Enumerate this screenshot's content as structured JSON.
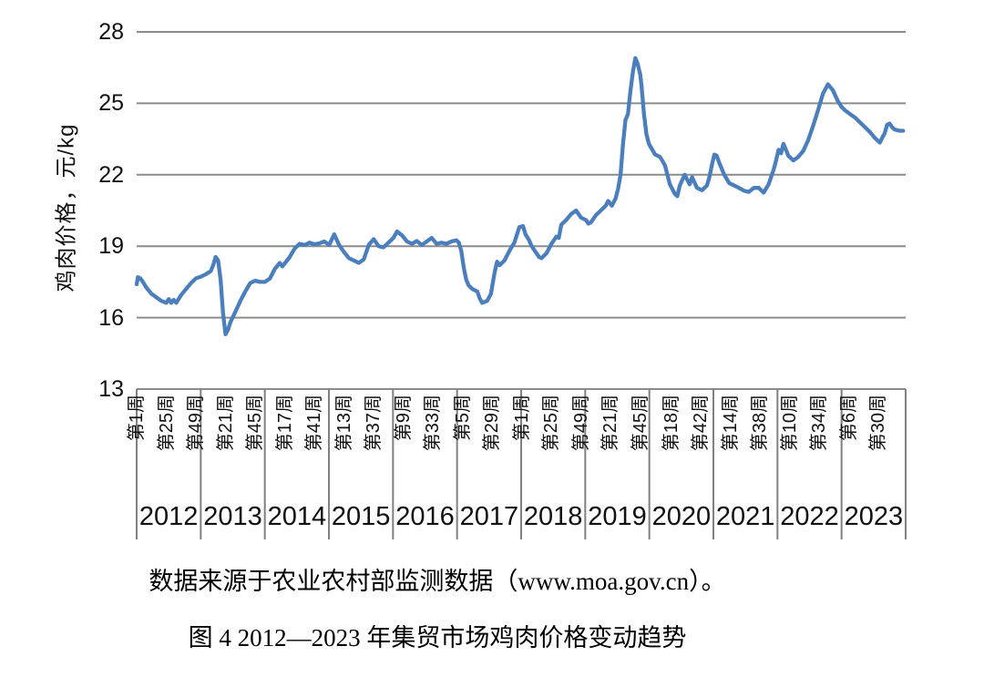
{
  "figure": {
    "source_note": "数据来源于农业农村部监测数据（www.moa.gov.cn）。",
    "caption": "图 4 2012—2023 年集贸市场鸡肉价格变动趋势"
  },
  "chart_data": {
    "type": "line",
    "title": "",
    "ylabel": "鸡肉价格，元/kg",
    "xlabel": "",
    "ylim": [
      13,
      28
    ],
    "y_ticks": [
      28,
      25,
      22,
      19,
      16,
      13
    ],
    "grid": "horizontal",
    "legend": "none",
    "x_unit": "week",
    "weeks_per_year": 52,
    "x_total_weeks": 624,
    "years": [
      "2012",
      "2013",
      "2014",
      "2015",
      "2016",
      "2017",
      "2018",
      "2019",
      "2020",
      "2021",
      "2022",
      "2023"
    ],
    "week_tick_labels": [
      {
        "label": "第1周",
        "global_week": 1
      },
      {
        "label": "第25周",
        "global_week": 25
      },
      {
        "label": "第49周",
        "global_week": 49
      },
      {
        "label": "第21周",
        "global_week": 73
      },
      {
        "label": "第45周",
        "global_week": 97
      },
      {
        "label": "第17周",
        "global_week": 121
      },
      {
        "label": "第41周",
        "global_week": 145
      },
      {
        "label": "第13周",
        "global_week": 169
      },
      {
        "label": "第37周",
        "global_week": 193
      },
      {
        "label": "第9周",
        "global_week": 217
      },
      {
        "label": "第33周",
        "global_week": 241
      },
      {
        "label": "第5周",
        "global_week": 265
      },
      {
        "label": "第29周",
        "global_week": 289
      },
      {
        "label": "第1周",
        "global_week": 313
      },
      {
        "label": "第25周",
        "global_week": 337
      },
      {
        "label": "第49周",
        "global_week": 361
      },
      {
        "label": "第21周",
        "global_week": 385
      },
      {
        "label": "第45周",
        "global_week": 409
      },
      {
        "label": "第18周",
        "global_week": 434
      },
      {
        "label": "第42周",
        "global_week": 458
      },
      {
        "label": "第14周",
        "global_week": 482
      },
      {
        "label": "第38周",
        "global_week": 506
      },
      {
        "label": "第10周",
        "global_week": 530
      },
      {
        "label": "第34周",
        "global_week": 554
      },
      {
        "label": "第6周",
        "global_week": 578
      },
      {
        "label": "第30周",
        "global_week": 602
      }
    ],
    "colors": {
      "line": "#4a7ebd",
      "gridline": "#8c8c8c",
      "table_border": "#808080",
      "text": "#111111"
    },
    "series": [
      {
        "name": "鸡肉价格",
        "unit": "元/kg",
        "points": [
          [
            1,
            17.4
          ],
          [
            2,
            17.7
          ],
          [
            4,
            17.65
          ],
          [
            6,
            17.5
          ],
          [
            9,
            17.25
          ],
          [
            13,
            17.0
          ],
          [
            17,
            16.85
          ],
          [
            21,
            16.7
          ],
          [
            25,
            16.62
          ],
          [
            27,
            16.78
          ],
          [
            29,
            16.62
          ],
          [
            31,
            16.75
          ],
          [
            33,
            16.62
          ],
          [
            37,
            16.95
          ],
          [
            41,
            17.2
          ],
          [
            45,
            17.45
          ],
          [
            49,
            17.65
          ],
          [
            53,
            17.72
          ],
          [
            57,
            17.82
          ],
          [
            61,
            17.95
          ],
          [
            63,
            18.2
          ],
          [
            65,
            18.55
          ],
          [
            67,
            18.4
          ],
          [
            69,
            17.6
          ],
          [
            71,
            16.2
          ],
          [
            73,
            15.3
          ],
          [
            75,
            15.5
          ],
          [
            77,
            15.82
          ],
          [
            81,
            16.25
          ],
          [
            85,
            16.7
          ],
          [
            89,
            17.1
          ],
          [
            93,
            17.45
          ],
          [
            97,
            17.55
          ],
          [
            101,
            17.5
          ],
          [
            105,
            17.5
          ],
          [
            109,
            17.65
          ],
          [
            113,
            18.05
          ],
          [
            117,
            18.3
          ],
          [
            119,
            18.15
          ],
          [
            121,
            18.28
          ],
          [
            125,
            18.55
          ],
          [
            129,
            18.9
          ],
          [
            133,
            19.1
          ],
          [
            137,
            19.05
          ],
          [
            141,
            19.15
          ],
          [
            145,
            19.08
          ],
          [
            149,
            19.12
          ],
          [
            153,
            19.2
          ],
          [
            157,
            19.05
          ],
          [
            161,
            19.5
          ],
          [
            165,
            19.05
          ],
          [
            169,
            18.75
          ],
          [
            173,
            18.5
          ],
          [
            177,
            18.4
          ],
          [
            181,
            18.3
          ],
          [
            185,
            18.45
          ],
          [
            189,
            19.05
          ],
          [
            193,
            19.3
          ],
          [
            197,
            19.0
          ],
          [
            201,
            18.95
          ],
          [
            205,
            19.15
          ],
          [
            209,
            19.35
          ],
          [
            212,
            19.62
          ],
          [
            216,
            19.45
          ],
          [
            220,
            19.2
          ],
          [
            224,
            19.1
          ],
          [
            228,
            19.22
          ],
          [
            232,
            19.05
          ],
          [
            236,
            19.2
          ],
          [
            240,
            19.35
          ],
          [
            244,
            19.1
          ],
          [
            248,
            19.15
          ],
          [
            252,
            19.1
          ],
          [
            256,
            19.2
          ],
          [
            260,
            19.25
          ],
          [
            262,
            19.15
          ],
          [
            264,
            18.8
          ],
          [
            266,
            18.1
          ],
          [
            268,
            17.6
          ],
          [
            270,
            17.35
          ],
          [
            273,
            17.2
          ],
          [
            277,
            17.1
          ],
          [
            279,
            16.8
          ],
          [
            281,
            16.62
          ],
          [
            285,
            16.7
          ],
          [
            288,
            17.0
          ],
          [
            291,
            17.9
          ],
          [
            293,
            18.35
          ],
          [
            295,
            18.2
          ],
          [
            299,
            18.4
          ],
          [
            303,
            18.8
          ],
          [
            307,
            19.15
          ],
          [
            311,
            19.8
          ],
          [
            314,
            19.85
          ],
          [
            316,
            19.5
          ],
          [
            319,
            19.25
          ],
          [
            321,
            19.0
          ],
          [
            325,
            18.7
          ],
          [
            327,
            18.55
          ],
          [
            329,
            18.5
          ],
          [
            333,
            18.7
          ],
          [
            337,
            19.1
          ],
          [
            341,
            19.4
          ],
          [
            343,
            19.35
          ],
          [
            345,
            19.9
          ],
          [
            349,
            20.1
          ],
          [
            353,
            20.35
          ],
          [
            357,
            20.5
          ],
          [
            361,
            20.2
          ],
          [
            365,
            20.1
          ],
          [
            367,
            19.95
          ],
          [
            369,
            20.0
          ],
          [
            373,
            20.3
          ],
          [
            377,
            20.5
          ],
          [
            381,
            20.7
          ],
          [
            383,
            20.9
          ],
          [
            386,
            20.7
          ],
          [
            389,
            21.0
          ],
          [
            391,
            21.4
          ],
          [
            393,
            22.0
          ],
          [
            395,
            23.3
          ],
          [
            397,
            24.3
          ],
          [
            399,
            24.55
          ],
          [
            401,
            25.5
          ],
          [
            403,
            26.3
          ],
          [
            405,
            26.9
          ],
          [
            407,
            26.65
          ],
          [
            409,
            26.2
          ],
          [
            410,
            25.75
          ],
          [
            412,
            24.55
          ],
          [
            414,
            23.7
          ],
          [
            416,
            23.3
          ],
          [
            417,
            23.2
          ],
          [
            421,
            22.85
          ],
          [
            425,
            22.75
          ],
          [
            429,
            22.4
          ],
          [
            433,
            21.6
          ],
          [
            437,
            21.2
          ],
          [
            439,
            21.1
          ],
          [
            441,
            21.55
          ],
          [
            445,
            22.0
          ],
          [
            449,
            21.6
          ],
          [
            451,
            21.9
          ],
          [
            455,
            21.45
          ],
          [
            459,
            21.35
          ],
          [
            463,
            21.55
          ],
          [
            465,
            21.9
          ],
          [
            467,
            22.4
          ],
          [
            469,
            22.85
          ],
          [
            471,
            22.8
          ],
          [
            473,
            22.5
          ],
          [
            477,
            22.0
          ],
          [
            481,
            21.65
          ],
          [
            485,
            21.55
          ],
          [
            489,
            21.45
          ],
          [
            493,
            21.33
          ],
          [
            497,
            21.28
          ],
          [
            501,
            21.45
          ],
          [
            505,
            21.45
          ],
          [
            509,
            21.25
          ],
          [
            513,
            21.6
          ],
          [
            517,
            22.2
          ],
          [
            519,
            22.6
          ],
          [
            521,
            23.05
          ],
          [
            523,
            22.9
          ],
          [
            525,
            23.3
          ],
          [
            529,
            22.8
          ],
          [
            533,
            22.6
          ],
          [
            537,
            22.75
          ],
          [
            541,
            23.0
          ],
          [
            545,
            23.45
          ],
          [
            549,
            24.05
          ],
          [
            553,
            24.7
          ],
          [
            557,
            25.4
          ],
          [
            561,
            25.8
          ],
          [
            565,
            25.55
          ],
          [
            569,
            25.1
          ],
          [
            572,
            24.85
          ],
          [
            575,
            24.7
          ],
          [
            579,
            24.55
          ],
          [
            583,
            24.4
          ],
          [
            587,
            24.2
          ],
          [
            591,
            24.0
          ],
          [
            595,
            23.8
          ],
          [
            599,
            23.55
          ],
          [
            603,
            23.35
          ],
          [
            607,
            23.75
          ],
          [
            609,
            24.1
          ],
          [
            611,
            24.15
          ],
          [
            613,
            24.0
          ],
          [
            615,
            23.9
          ],
          [
            619,
            23.85
          ],
          [
            622,
            23.85
          ]
        ]
      }
    ]
  }
}
